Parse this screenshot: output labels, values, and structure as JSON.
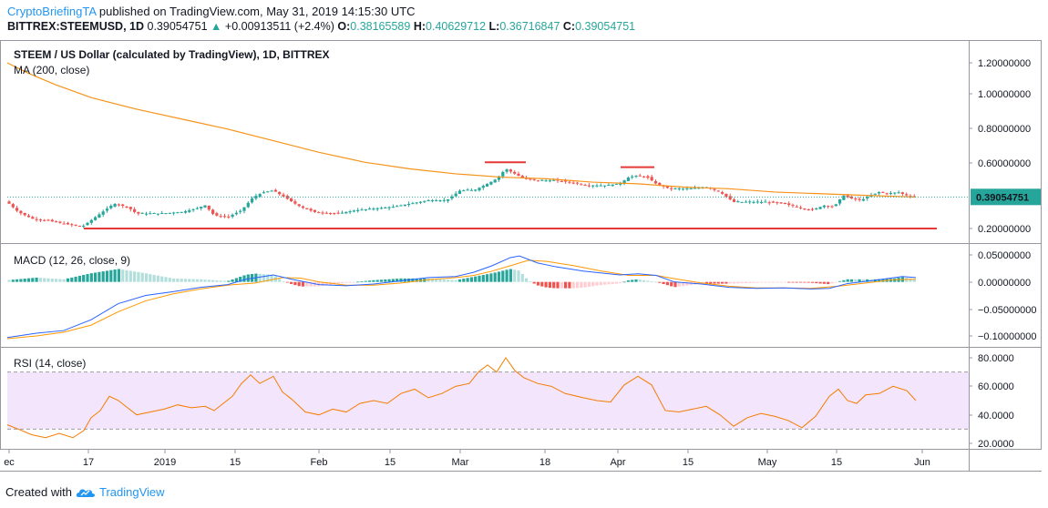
{
  "header": {
    "author": "CryptoBriefingTA",
    "published_text": " published on TradingView.com, May 31, 2019 14:15:30 UTC",
    "symbol": "BITTREX:STEEMUSD, 1D",
    "price": "0.39054751",
    "up_arrow": "▲",
    "change": "+0.00913511 (+2.4%)",
    "o_label": "O:",
    "o_value": "0.38165589",
    "h_label": "H:",
    "h_value": "0.40629712",
    "l_label": "L:",
    "l_value": "0.36716847",
    "c_label": "C:",
    "c_value": "0.39054751"
  },
  "footer": {
    "created_with": "Created with",
    "brand": "TradingView",
    "logo_icon": "tradingview-cloud-icon"
  },
  "colors": {
    "up": "#26a69a",
    "down": "#ef5350",
    "ma": "#f7931a",
    "macd": "#2962ff",
    "signal": "#ff9800",
    "rsi": "#f57c00",
    "rsi_band": "#f3e5fb",
    "support": "#e53935",
    "price_tag": "#26a69a"
  },
  "chart_data": [
    {
      "type": "candlestick",
      "pane": "price",
      "title": "STEEM / US Dollar (calculated by TradingView), 1D, BITTREX",
      "indicator_label": "MA (200, close)",
      "ylim": [
        0.15,
        1.3
      ],
      "y_ticks": [
        "1.20000000",
        "1.00000000",
        "0.80000000",
        "0.60000000",
        "0.20000000"
      ],
      "current_price_tag": "0.39054751",
      "x_ticks": [
        "ec",
        "17",
        "2019",
        "15",
        "Feb",
        "15",
        "Mar",
        "18",
        "Apr",
        "15",
        "May",
        "15",
        "Jun"
      ],
      "close_points": [
        [
          0,
          0.38
        ],
        [
          10,
          0.35
        ],
        [
          20,
          0.3
        ],
        [
          35,
          0.26
        ],
        [
          50,
          0.25
        ],
        [
          70,
          0.23
        ],
        [
          90,
          0.21
        ],
        [
          110,
          0.29
        ],
        [
          125,
          0.35
        ],
        [
          140,
          0.33
        ],
        [
          150,
          0.29
        ],
        [
          175,
          0.29
        ],
        [
          200,
          0.3
        ],
        [
          215,
          0.32
        ],
        [
          225,
          0.34
        ],
        [
          235,
          0.28
        ],
        [
          250,
          0.27
        ],
        [
          265,
          0.31
        ],
        [
          278,
          0.39
        ],
        [
          290,
          0.42
        ],
        [
          300,
          0.43
        ],
        [
          315,
          0.38
        ],
        [
          330,
          0.33
        ],
        [
          345,
          0.3
        ],
        [
          370,
          0.29
        ],
        [
          390,
          0.31
        ],
        [
          410,
          0.32
        ],
        [
          430,
          0.33
        ],
        [
          450,
          0.35
        ],
        [
          470,
          0.37
        ],
        [
          490,
          0.37
        ],
        [
          505,
          0.43
        ],
        [
          520,
          0.43
        ],
        [
          535,
          0.47
        ],
        [
          545,
          0.5
        ],
        [
          555,
          0.56
        ],
        [
          565,
          0.53
        ],
        [
          575,
          0.5
        ],
        [
          590,
          0.49
        ],
        [
          610,
          0.49
        ],
        [
          625,
          0.48
        ],
        [
          645,
          0.46
        ],
        [
          665,
          0.46
        ],
        [
          680,
          0.47
        ],
        [
          690,
          0.51
        ],
        [
          700,
          0.52
        ],
        [
          710,
          0.51
        ],
        [
          720,
          0.47
        ],
        [
          735,
          0.44
        ],
        [
          755,
          0.44
        ],
        [
          775,
          0.45
        ],
        [
          790,
          0.42
        ],
        [
          805,
          0.36
        ],
        [
          820,
          0.36
        ],
        [
          840,
          0.36
        ],
        [
          860,
          0.35
        ],
        [
          875,
          0.33
        ],
        [
          890,
          0.31
        ],
        [
          905,
          0.34
        ],
        [
          915,
          0.33
        ],
        [
          925,
          0.4
        ],
        [
          935,
          0.38
        ],
        [
          945,
          0.37
        ],
        [
          955,
          0.4
        ],
        [
          965,
          0.42
        ],
        [
          975,
          0.41
        ],
        [
          985,
          0.42
        ],
        [
          995,
          0.4
        ],
        [
          1005,
          0.39
        ]
      ],
      "ma_points": [
        [
          8,
          1.2
        ],
        [
          30,
          1.14
        ],
        [
          60,
          1.07
        ],
        [
          100,
          0.99
        ],
        [
          150,
          0.92
        ],
        [
          200,
          0.86
        ],
        [
          250,
          0.8
        ],
        [
          300,
          0.73
        ],
        [
          350,
          0.66
        ],
        [
          400,
          0.6
        ],
        [
          450,
          0.56
        ],
        [
          500,
          0.53
        ],
        [
          550,
          0.51
        ],
        [
          600,
          0.5
        ],
        [
          650,
          0.48
        ],
        [
          700,
          0.47
        ],
        [
          750,
          0.45
        ],
        [
          800,
          0.44
        ],
        [
          850,
          0.42
        ],
        [
          900,
          0.41
        ],
        [
          950,
          0.4
        ],
        [
          1005,
          0.39
        ]
      ],
      "annotations": [
        {
          "type": "support",
          "y": 0.2
        },
        {
          "type": "resistance",
          "y": 0.6
        },
        {
          "type": "resistance",
          "y": 0.57
        }
      ]
    },
    {
      "type": "line",
      "pane": "macd",
      "title": "MACD (12, 26, close, 9)",
      "ylim": [
        -0.11,
        0.06
      ],
      "y_ticks": [
        "0.05000000",
        "0.00000000",
        "−0.05000000",
        "−0.10000000"
      ],
      "series": [
        {
          "role": "macd",
          "points": [
            [
              8,
              -0.103
            ],
            [
              40,
              -0.095
            ],
            [
              70,
              -0.09
            ],
            [
              100,
              -0.07
            ],
            [
              130,
              -0.04
            ],
            [
              160,
              -0.025
            ],
            [
              190,
              -0.018
            ],
            [
              220,
              -0.01
            ],
            [
              250,
              -0.005
            ],
            [
              270,
              0.005
            ],
            [
              300,
              0.013
            ],
            [
              320,
              0.005
            ],
            [
              350,
              -0.005
            ],
            [
              380,
              -0.007
            ],
            [
              410,
              -0.004
            ],
            [
              440,
              0.002
            ],
            [
              470,
              0.008
            ],
            [
              500,
              0.01
            ],
            [
              520,
              0.018
            ],
            [
              540,
              0.03
            ],
            [
              560,
              0.045
            ],
            [
              570,
              0.048
            ],
            [
              590,
              0.035
            ],
            [
              610,
              0.028
            ],
            [
              640,
              0.02
            ],
            [
              680,
              0.013
            ],
            [
              700,
              0.015
            ],
            [
              720,
              0.012
            ],
            [
              740,
              0.0
            ],
            [
              770,
              -0.004
            ],
            [
              800,
              -0.01
            ],
            [
              830,
              -0.012
            ],
            [
              860,
              -0.011
            ],
            [
              890,
              -0.013
            ],
            [
              910,
              -0.012
            ],
            [
              930,
              -0.003
            ],
            [
              960,
              0.003
            ],
            [
              990,
              0.01
            ],
            [
              1005,
              0.008
            ]
          ]
        },
        {
          "role": "signal",
          "points": [
            [
              8,
              -0.105
            ],
            [
              40,
              -0.1
            ],
            [
              70,
              -0.093
            ],
            [
              100,
              -0.08
            ],
            [
              130,
              -0.055
            ],
            [
              160,
              -0.035
            ],
            [
              190,
              -0.022
            ],
            [
              220,
              -0.013
            ],
            [
              250,
              -0.006
            ],
            [
              280,
              -0.002
            ],
            [
              310,
              0.008
            ],
            [
              330,
              0.007
            ],
            [
              350,
              0.0
            ],
            [
              380,
              -0.006
            ],
            [
              410,
              -0.006
            ],
            [
              440,
              -0.002
            ],
            [
              470,
              0.004
            ],
            [
              500,
              0.008
            ],
            [
              520,
              0.012
            ],
            [
              540,
              0.02
            ],
            [
              560,
              0.03
            ],
            [
              580,
              0.04
            ],
            [
              600,
              0.038
            ],
            [
              630,
              0.03
            ],
            [
              660,
              0.02
            ],
            [
              690,
              0.012
            ],
            [
              720,
              0.012
            ],
            [
              740,
              0.006
            ],
            [
              770,
              -0.002
            ],
            [
              800,
              -0.008
            ],
            [
              830,
              -0.011
            ],
            [
              860,
              -0.011
            ],
            [
              890,
              -0.012
            ],
            [
              920,
              -0.008
            ],
            [
              950,
              -0.002
            ],
            [
              980,
              0.004
            ],
            [
              1005,
              0.005
            ]
          ]
        }
      ]
    },
    {
      "type": "line",
      "pane": "rsi",
      "title": "RSI (14, close)",
      "ylim": [
        15,
        85
      ],
      "y_ticks": [
        "80.0000",
        "60.0000",
        "40.0000",
        "20.0000"
      ],
      "band": [
        30,
        70
      ],
      "points": [
        [
          8,
          33
        ],
        [
          20,
          30
        ],
        [
          35,
          26
        ],
        [
          50,
          24
        ],
        [
          65,
          27
        ],
        [
          80,
          24
        ],
        [
          92,
          29
        ],
        [
          100,
          38
        ],
        [
          110,
          43
        ],
        [
          120,
          53
        ],
        [
          130,
          50
        ],
        [
          140,
          45
        ],
        [
          150,
          40
        ],
        [
          165,
          42
        ],
        [
          180,
          44
        ],
        [
          195,
          47
        ],
        [
          210,
          45
        ],
        [
          225,
          46
        ],
        [
          235,
          43
        ],
        [
          245,
          48
        ],
        [
          255,
          53
        ],
        [
          265,
          62
        ],
        [
          275,
          68
        ],
        [
          285,
          62
        ],
        [
          300,
          67
        ],
        [
          310,
          56
        ],
        [
          320,
          51
        ],
        [
          335,
          42
        ],
        [
          350,
          40
        ],
        [
          365,
          44
        ],
        [
          380,
          42
        ],
        [
          395,
          48
        ],
        [
          410,
          50
        ],
        [
          425,
          48
        ],
        [
          440,
          55
        ],
        [
          455,
          58
        ],
        [
          470,
          52
        ],
        [
          485,
          55
        ],
        [
          500,
          60
        ],
        [
          515,
          62
        ],
        [
          525,
          70
        ],
        [
          535,
          75
        ],
        [
          545,
          70
        ],
        [
          555,
          80
        ],
        [
          565,
          71
        ],
        [
          575,
          66
        ],
        [
          590,
          62
        ],
        [
          605,
          60
        ],
        [
          620,
          55
        ],
        [
          640,
          52
        ],
        [
          655,
          50
        ],
        [
          670,
          49
        ],
        [
          685,
          61
        ],
        [
          700,
          67
        ],
        [
          715,
          61
        ],
        [
          730,
          43
        ],
        [
          745,
          42
        ],
        [
          760,
          44
        ],
        [
          775,
          46
        ],
        [
          790,
          40
        ],
        [
          805,
          32
        ],
        [
          820,
          38
        ],
        [
          835,
          41
        ],
        [
          850,
          39
        ],
        [
          865,
          36
        ],
        [
          880,
          31
        ],
        [
          895,
          39
        ],
        [
          910,
          53
        ],
        [
          920,
          58
        ],
        [
          930,
          50
        ],
        [
          940,
          48
        ],
        [
          950,
          54
        ],
        [
          965,
          55
        ],
        [
          980,
          60
        ],
        [
          995,
          57
        ],
        [
          1005,
          50
        ]
      ]
    }
  ]
}
